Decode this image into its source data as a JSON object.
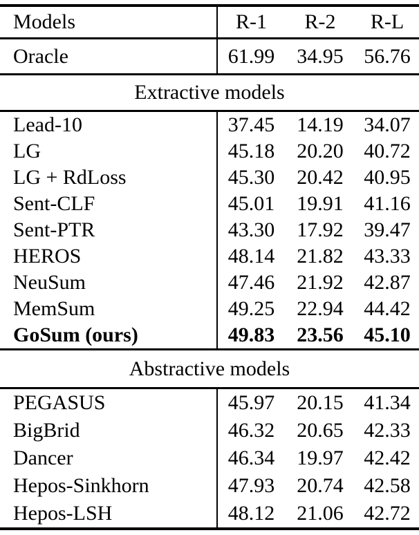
{
  "colors": {
    "background": "#ffffff",
    "text": "#000000",
    "rule": "#000000"
  },
  "table": {
    "columns": [
      "Models",
      "R-1",
      "R-2",
      "R-L"
    ],
    "sections": [
      {
        "type": "rows",
        "rows": [
          {
            "model": "Oracle",
            "r1": "61.99",
            "r2": "34.95",
            "rl": "56.76",
            "bold": false
          }
        ]
      },
      {
        "type": "band",
        "label": "Extractive models"
      },
      {
        "type": "rows",
        "rows": [
          {
            "model": "Lead-10",
            "r1": "37.45",
            "r2": "14.19",
            "rl": "34.07",
            "bold": false
          },
          {
            "model": "LG",
            "r1": "45.18",
            "r2": "20.20",
            "rl": "40.72",
            "bold": false
          },
          {
            "model": "LG + RdLoss",
            "r1": "45.30",
            "r2": "20.42",
            "rl": "40.95",
            "bold": false
          },
          {
            "model": "Sent-CLF",
            "r1": "45.01",
            "r2": "19.91",
            "rl": "41.16",
            "bold": false
          },
          {
            "model": "Sent-PTR",
            "r1": "43.30",
            "r2": "17.92",
            "rl": "39.47",
            "bold": false
          },
          {
            "model": "HEROS",
            "r1": "48.14",
            "r2": "21.82",
            "rl": "43.33",
            "bold": false
          },
          {
            "model": "NeuSum",
            "r1": "47.46",
            "r2": "21.92",
            "rl": "42.87",
            "bold": false
          },
          {
            "model": "MemSum",
            "r1": "49.25",
            "r2": "22.94",
            "rl": "44.42",
            "bold": false
          },
          {
            "model": "GoSum (ours)",
            "r1": "49.83",
            "r2": "23.56",
            "rl": "45.10",
            "bold": true
          }
        ]
      },
      {
        "type": "band",
        "label": "Abstractive models"
      },
      {
        "type": "rows",
        "rows": [
          {
            "model": "PEGASUS",
            "r1": "45.97",
            "r2": "20.15",
            "rl": "41.34",
            "bold": false
          },
          {
            "model": "BigBrid",
            "r1": "46.32",
            "r2": "20.65",
            "rl": "42.33",
            "bold": false
          },
          {
            "model": "Dancer",
            "r1": "46.34",
            "r2": "19.97",
            "rl": "42.42",
            "bold": false
          },
          {
            "model": "Hepos-Sinkhorn",
            "r1": "47.93",
            "r2": "20.74",
            "rl": "42.58",
            "bold": false
          },
          {
            "model": "Hepos-LSH",
            "r1": "48.12",
            "r2": "21.06",
            "rl": "42.72",
            "bold": false
          }
        ]
      }
    ]
  }
}
